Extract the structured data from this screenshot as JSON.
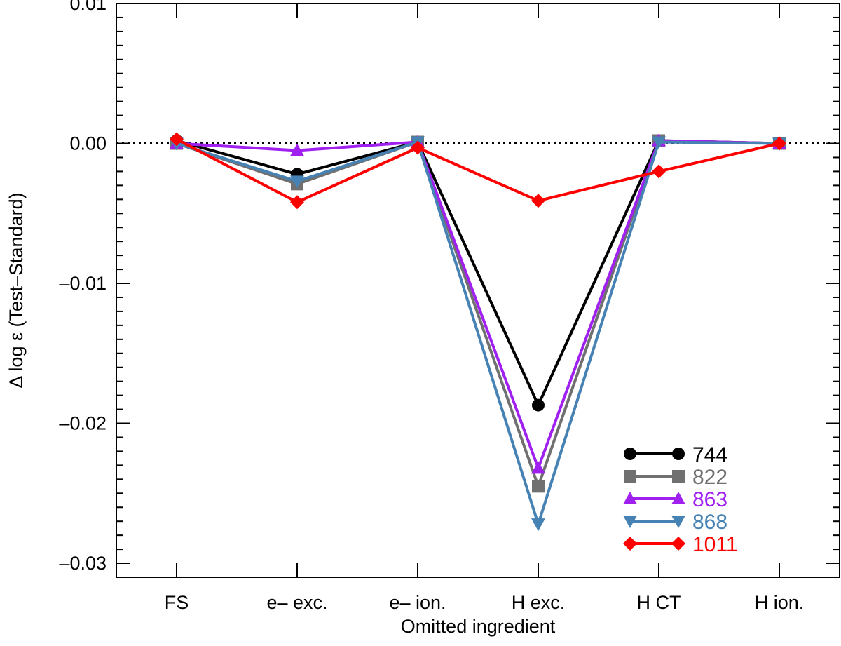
{
  "chart_data": {
    "type": "line",
    "title": "",
    "xlabel": "Omitted ingredient",
    "ylabel": "Δ log ε (Test–Standard)",
    "categories": [
      "FS",
      "e– exc.",
      "e– ion.",
      "H exc.",
      "H CT",
      "H ion."
    ],
    "ylim": [
      -0.031,
      0.01
    ],
    "y_ticks": [
      0.01,
      0.0,
      -0.01,
      -0.02,
      -0.03
    ],
    "y_tick_labels": [
      "0.01",
      "0.00",
      "–0.01",
      "–0.02",
      "–0.03"
    ],
    "reference_line": 0.0,
    "legend_position": "bottom-right",
    "series": [
      {
        "name": "744",
        "color": "#000000",
        "marker": "circle",
        "values": [
          0.0002,
          -0.0022,
          0.0001,
          -0.0187,
          0.0002,
          0.0
        ]
      },
      {
        "name": "822",
        "color": "#707070",
        "marker": "square",
        "values": [
          0.0,
          -0.0029,
          0.0001,
          -0.0245,
          0.0002,
          0.0
        ]
      },
      {
        "name": "863",
        "color": "#a020f0",
        "marker": "triangle-up",
        "values": [
          0.0,
          -0.0005,
          0.0001,
          -0.0232,
          0.0002,
          0.0
        ]
      },
      {
        "name": "868",
        "color": "#4682b4",
        "marker": "triangle-down",
        "values": [
          0.0,
          -0.0027,
          0.0001,
          -0.0272,
          0.0001,
          0.0
        ]
      },
      {
        "name": "1011",
        "color": "#ff0000",
        "marker": "diamond",
        "values": [
          0.0003,
          -0.0042,
          -0.0003,
          -0.0041,
          -0.002,
          0.0
        ]
      }
    ]
  }
}
